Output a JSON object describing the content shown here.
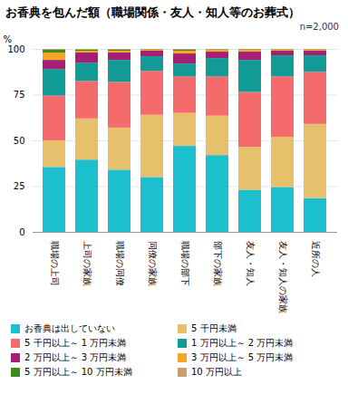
{
  "chart_data": {
    "type": "bar",
    "stacked": true,
    "title": "お香典を包んだ額（職場関係・友人・知人等のお葬式）",
    "annotation": "n=2,000",
    "y_label": "%",
    "categories": [
      "職場の上司",
      "上司の家族",
      "職場の同僚",
      "同僚の家族",
      "職場の部下",
      "部下の家族",
      "友人・知人",
      "友人・知人の家族",
      "近所の人"
    ],
    "series": [
      {
        "name": "お香典は出していない",
        "color": "#1bbfce",
        "values": [
          35.5,
          39.5,
          34,
          30,
          47,
          42,
          23,
          24.5,
          18.5
        ]
      },
      {
        "name": "5 千円未満",
        "color": "#e6c06a",
        "values": [
          14.5,
          22.5,
          23,
          34,
          18,
          21.5,
          23.5,
          27.5,
          40.5
        ]
      },
      {
        "name": "5 千円以上～ 1 万円未満",
        "color": "#f56b6b",
        "values": [
          24.5,
          20.5,
          25,
          24,
          20,
          21.5,
          30,
          33,
          28.5
        ]
      },
      {
        "name": "1 万円以上～ 2 万円未満",
        "color": "#119a96",
        "values": [
          14.5,
          10,
          12,
          8,
          7,
          10,
          17.5,
          11.5,
          9
        ]
      },
      {
        "name": "2 万円以上～ 3 万円未満",
        "color": "#a51f79",
        "values": [
          5,
          5.5,
          4,
          3,
          5.5,
          3.5,
          4.5,
          2.5,
          2.5
        ]
      },
      {
        "name": "3 万円以上～ 5 万円未満",
        "color": "#f5a623",
        "values": [
          4,
          1,
          1,
          0.5,
          1.5,
          1,
          1,
          0.7,
          0.7
        ]
      },
      {
        "name": "5 万円以上～ 10 万円未満",
        "color": "#3d8c1e",
        "values": [
          1.5,
          0.7,
          0.5,
          0.3,
          0.5,
          0.3,
          0.3,
          0.2,
          0.2
        ]
      },
      {
        "name": "10 万円以上",
        "color": "#c8a070",
        "values": [
          0.5,
          0.3,
          0.5,
          0.2,
          0.5,
          0.2,
          0.2,
          0.1,
          0.1
        ]
      }
    ],
    "ylim": [
      0,
      100
    ],
    "yticks": [
      0,
      25,
      50,
      75,
      100
    ],
    "grid": true,
    "legend": "bottom"
  }
}
